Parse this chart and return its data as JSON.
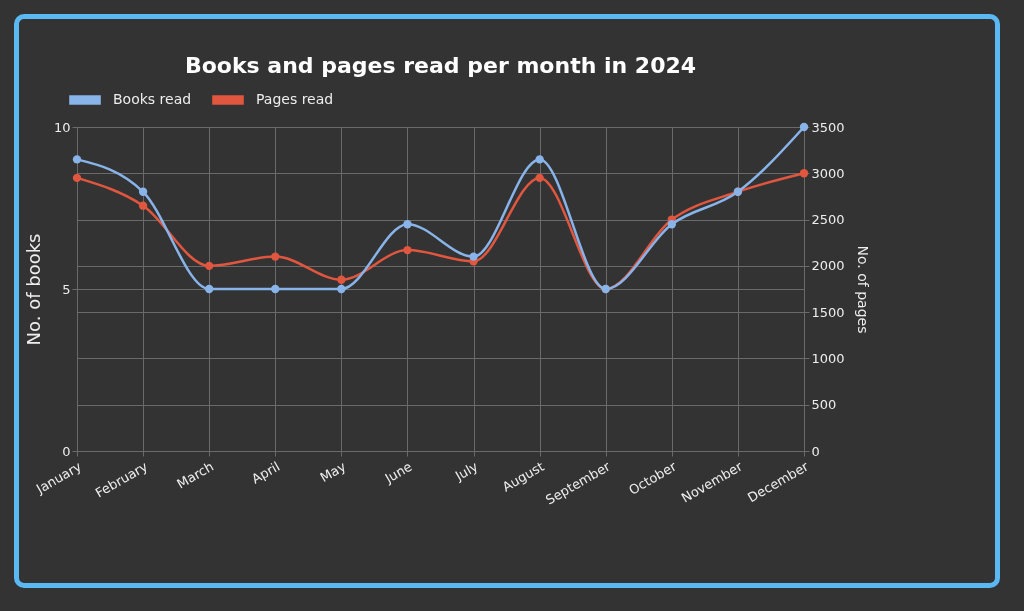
{
  "chart_data": {
    "type": "line",
    "title": "Books and pages read per month in 2024",
    "ylabel": "No. of books",
    "y2label": "No. of pages",
    "categories": [
      "January",
      "February",
      "March",
      "April",
      "May",
      "June",
      "July",
      "August",
      "September",
      "October",
      "November",
      "December"
    ],
    "series": [
      {
        "name": "Books read",
        "color": "#89b4ea",
        "values": [
          9,
          8,
          5,
          5,
          5,
          7,
          6,
          9,
          5,
          7,
          8,
          10
        ]
      },
      {
        "name": "Pages read",
        "color": "#e0563f",
        "axis": "y2",
        "values": [
          2950,
          2650,
          2000,
          2100,
          1850,
          2170,
          2050,
          2950,
          1750,
          2500,
          2800,
          3000
        ]
      }
    ],
    "ylim": [
      0,
      10
    ],
    "yticks": [
      0,
      5,
      10
    ],
    "y2lim": [
      0,
      3500
    ],
    "y2ticks": [
      0,
      500,
      1000,
      1500,
      2000,
      2500,
      3000,
      3500
    ],
    "grid": true,
    "legend": "top",
    "marker": "circle",
    "line_style": "solid"
  }
}
